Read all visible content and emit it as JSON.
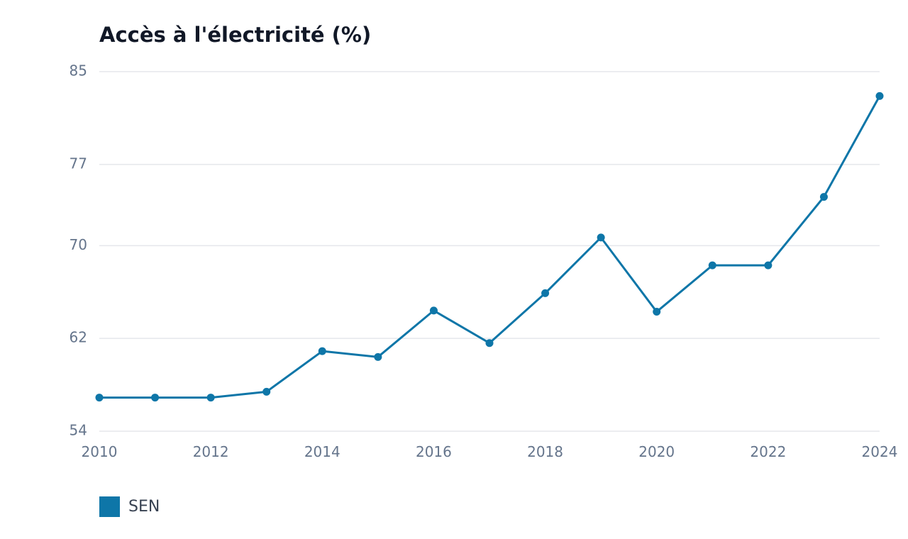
{
  "chart_data": {
    "type": "line",
    "title": "Accès à l'électricité (%)",
    "xlabel": "",
    "ylabel": "",
    "x": [
      2010,
      2011,
      2012,
      2013,
      2014,
      2015,
      2016,
      2017,
      2018,
      2019,
      2020,
      2021,
      2022,
      2023,
      2024
    ],
    "x_ticks": [
      "2010",
      "2012",
      "2014",
      "2016",
      "2018",
      "2020",
      "2022",
      "2024"
    ],
    "y_ticks": [
      "85",
      "77",
      "70",
      "62",
      "54"
    ],
    "ylim": [
      54,
      85
    ],
    "xlim": [
      2010,
      2024
    ],
    "grid": "horizontal",
    "legend_position": "bottom-left",
    "series": [
      {
        "name": "SEN",
        "color": "#0e76a8",
        "values": [
          56.9,
          56.9,
          56.9,
          57.4,
          60.9,
          60.4,
          64.4,
          61.6,
          65.9,
          70.7,
          64.3,
          68.3,
          68.3,
          74.2,
          82.9
        ]
      }
    ]
  }
}
